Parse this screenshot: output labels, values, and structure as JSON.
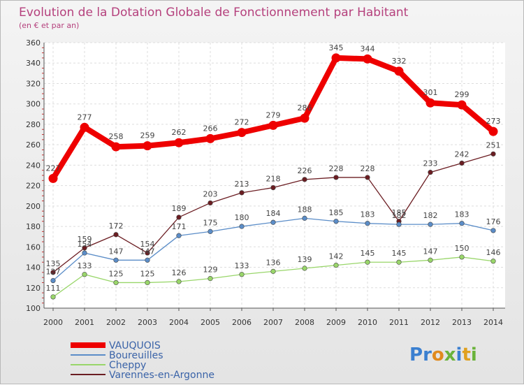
{
  "chart_data": {
    "type": "line",
    "title": "Evolution de la Dotation Globale de Fonctionnement par Habitant",
    "subtitle": "(en € et par an)",
    "x": [
      "2000",
      "2001",
      "2002",
      "2003",
      "2004",
      "2005",
      "2006",
      "2007",
      "2008",
      "2009",
      "2010",
      "2011",
      "2012",
      "2013",
      "2014"
    ],
    "ylim": [
      100,
      360
    ],
    "yticks": [
      "100",
      "120",
      "140",
      "160",
      "180",
      "200",
      "220",
      "240",
      "260",
      "280",
      "300",
      "320",
      "340",
      "360"
    ],
    "grid": true,
    "series": [
      {
        "name": "VAUQUOIS",
        "color": "#ee0000",
        "values": [
          227,
          277,
          258,
          259,
          262,
          266,
          272,
          279,
          286,
          345,
          344,
          332,
          301,
          299,
          273
        ]
      },
      {
        "name": "Boureuilles",
        "color": "#5b8dc8",
        "values": [
          127,
          154,
          147,
          147,
          171,
          175,
          180,
          184,
          188,
          185,
          183,
          182,
          182,
          183,
          176
        ]
      },
      {
        "name": "Cheppy",
        "color": "#99d66a",
        "values": [
          111,
          133,
          125,
          125,
          126,
          129,
          133,
          136,
          139,
          142,
          145,
          145,
          147,
          150,
          146
        ]
      },
      {
        "name": "Varennes-en-Argonne",
        "color": "#6b1d22",
        "values": [
          135,
          159,
          172,
          154,
          189,
          203,
          213,
          218,
          226,
          228,
          228,
          185,
          233,
          242,
          251
        ]
      }
    ],
    "legend": "bottom-left"
  },
  "logo": {
    "text": "Proxiti"
  }
}
